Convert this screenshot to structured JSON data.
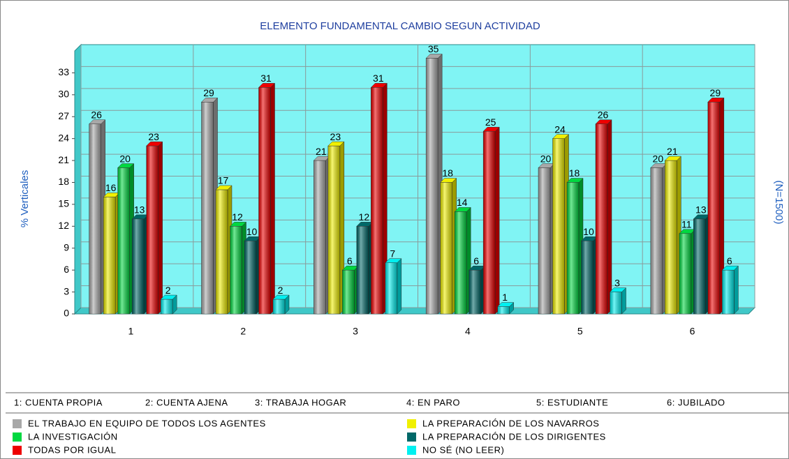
{
  "chart_data": {
    "type": "bar3d",
    "title": "ELEMENTO FUNDAMENTAL CAMBIO SEGUN ACTIVIDAD",
    "y_label": "% Verticales",
    "y2_label": "(N=1500)",
    "categories": [
      "1",
      "2",
      "3",
      "4",
      "5",
      "6"
    ],
    "category_notes": [
      "1: CUENTA PROPIA",
      "2: CUENTA AJENA",
      "3: TRABAJA HOGAR",
      "4: EN PARO",
      "5: ESTUDIANTE",
      "6: JUBILADO"
    ],
    "series": [
      {
        "name": "EL TRABAJO EN EQUIPO DE TODOS LOS AGENTES",
        "color": "#a8a8a8",
        "values": [
          26,
          29,
          21,
          35,
          20,
          20
        ]
      },
      {
        "name": "LA PREPARACIÓN DE LOS NAVARROS",
        "color": "#f0f000",
        "values": [
          16,
          17,
          23,
          18,
          24,
          21
        ]
      },
      {
        "name": "LA INVESTIGACIÓN",
        "color": "#00d840",
        "values": [
          20,
          12,
          6,
          14,
          18,
          11
        ]
      },
      {
        "name": "LA PREPARACIÓN DE LOS DIRIGENTES",
        "color": "#006868",
        "values": [
          13,
          10,
          12,
          6,
          10,
          13
        ]
      },
      {
        "name": "TODAS POR IGUAL",
        "color": "#ee0000",
        "values": [
          23,
          31,
          31,
          25,
          26,
          29
        ]
      },
      {
        "name": "NO SÉ (NO LEER)",
        "color": "#00f0f0",
        "values": [
          2,
          2,
          7,
          1,
          3,
          6
        ]
      }
    ],
    "ylim": [
      0,
      36
    ],
    "yticks": [
      0,
      3,
      6,
      9,
      12,
      15,
      18,
      21,
      24,
      27,
      30,
      33
    ],
    "grid": true,
    "wall_color": "#80f4f4"
  }
}
